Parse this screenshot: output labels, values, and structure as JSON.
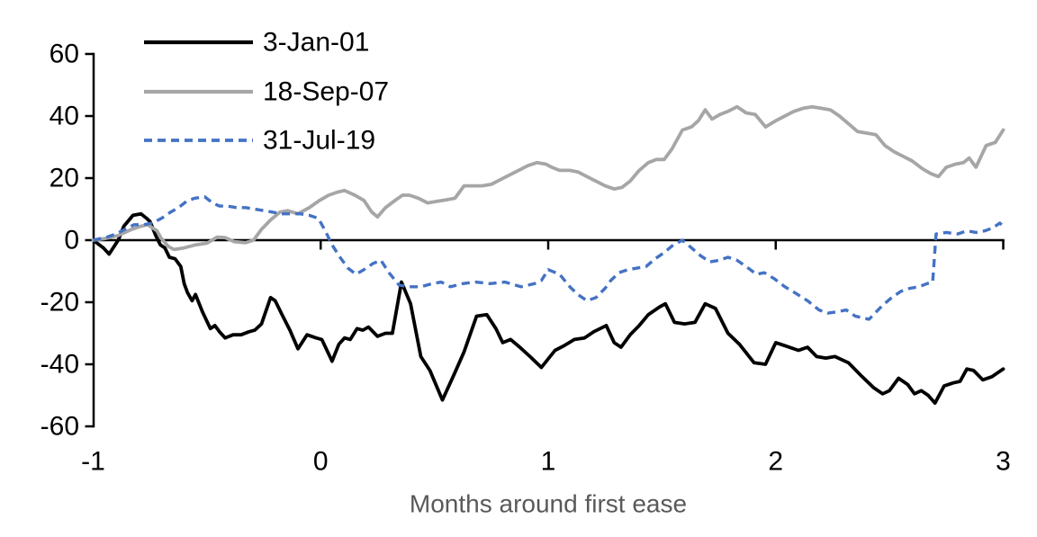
{
  "chart_data": {
    "type": "line",
    "title": "",
    "xlabel": "Months around first ease",
    "ylabel": "",
    "xlim": [
      -1,
      3
    ],
    "ylim": [
      -60,
      60
    ],
    "x_ticks": [
      "-1",
      "0",
      "1",
      "2",
      "3"
    ],
    "x_tick_values": [
      -1,
      0,
      1,
      2,
      3
    ],
    "y_ticks": [
      "60",
      "40",
      "20",
      "0",
      "-20",
      "-40",
      "-60"
    ],
    "y_tick_values": [
      60,
      40,
      20,
      0,
      -20,
      -40,
      -60
    ],
    "grid": false,
    "legend_position": "top-left-inside",
    "axis_color": "#000000",
    "tick_label_color": "#000000",
    "xlabel_color": "#595959",
    "series": [
      {
        "name": "3-Jan-01",
        "color": "#000000",
        "style": "solid",
        "width": 3.8,
        "points": [
          [
            -1,
            0
          ],
          [
            -0.955,
            -2.5
          ],
          [
            -0.93,
            -4.5
          ],
          [
            -0.89,
            0
          ],
          [
            -0.865,
            4.5
          ],
          [
            -0.825,
            8
          ],
          [
            -0.79,
            8.5
          ],
          [
            -0.765,
            7
          ],
          [
            -0.75,
            6
          ],
          [
            -0.725,
            1.5
          ],
          [
            -0.705,
            -1.5
          ],
          [
            -0.685,
            -2.5
          ],
          [
            -0.665,
            -5.5
          ],
          [
            -0.64,
            -6
          ],
          [
            -0.615,
            -8.5
          ],
          [
            -0.6,
            -14
          ],
          [
            -0.585,
            -17
          ],
          [
            -0.565,
            -19.5
          ],
          [
            -0.55,
            -17.5
          ],
          [
            -0.52,
            -23
          ],
          [
            -0.485,
            -28.5
          ],
          [
            -0.465,
            -27.5
          ],
          [
            -0.445,
            -29.5
          ],
          [
            -0.42,
            -31.5
          ],
          [
            -0.385,
            -30.5
          ],
          [
            -0.35,
            -30.5
          ],
          [
            -0.315,
            -29.5
          ],
          [
            -0.29,
            -29
          ],
          [
            -0.26,
            -27
          ],
          [
            -0.22,
            -18.5
          ],
          [
            -0.2,
            -19.5
          ],
          [
            -0.17,
            -24
          ],
          [
            -0.135,
            -29
          ],
          [
            -0.1,
            -35
          ],
          [
            -0.06,
            -30.5
          ],
          [
            -0.02,
            -31.5
          ],
          [
            0.005,
            -32
          ],
          [
            0.05,
            -39
          ],
          [
            0.08,
            -33.5
          ],
          [
            0.105,
            -31.5
          ],
          [
            0.13,
            -32
          ],
          [
            0.16,
            -28.5
          ],
          [
            0.185,
            -29
          ],
          [
            0.21,
            -28
          ],
          [
            0.25,
            -31
          ],
          [
            0.285,
            -30
          ],
          [
            0.315,
            -30
          ],
          [
            0.355,
            -13.5
          ],
          [
            0.395,
            -20.5
          ],
          [
            0.44,
            -37.5
          ],
          [
            0.48,
            -42
          ],
          [
            0.535,
            -51.5
          ],
          [
            0.585,
            -43.5
          ],
          [
            0.63,
            -36
          ],
          [
            0.685,
            -24.5
          ],
          [
            0.73,
            -24
          ],
          [
            0.77,
            -28.5
          ],
          [
            0.8,
            -33
          ],
          [
            0.835,
            -32
          ],
          [
            0.875,
            -34.5
          ],
          [
            0.92,
            -37.5
          ],
          [
            0.97,
            -41
          ],
          [
            1.03,
            -35.5
          ],
          [
            1.07,
            -34
          ],
          [
            1.115,
            -32
          ],
          [
            1.16,
            -31.5
          ],
          [
            1.2,
            -29.5
          ],
          [
            1.255,
            -27.5
          ],
          [
            1.29,
            -33
          ],
          [
            1.32,
            -34.5
          ],
          [
            1.36,
            -30.5
          ],
          [
            1.4,
            -27.5
          ],
          [
            1.44,
            -24
          ],
          [
            1.49,
            -21.5
          ],
          [
            1.515,
            -20.5
          ],
          [
            1.555,
            -26.5
          ],
          [
            1.6,
            -27
          ],
          [
            1.645,
            -26.5
          ],
          [
            1.69,
            -20.5
          ],
          [
            1.735,
            -22
          ],
          [
            1.79,
            -30
          ],
          [
            1.84,
            -33.5
          ],
          [
            1.905,
            -39.5
          ],
          [
            1.955,
            -40
          ],
          [
            2,
            -33
          ],
          [
            2.04,
            -34
          ],
          [
            2.1,
            -35.5
          ],
          [
            2.14,
            -34.5
          ],
          [
            2.18,
            -37.5
          ],
          [
            2.22,
            -38
          ],
          [
            2.26,
            -37.5
          ],
          [
            2.32,
            -39.5
          ],
          [
            2.38,
            -44
          ],
          [
            2.43,
            -47.5
          ],
          [
            2.47,
            -49.5
          ],
          [
            2.5,
            -48.5
          ],
          [
            2.54,
            -44.5
          ],
          [
            2.58,
            -46.5
          ],
          [
            2.61,
            -49.5
          ],
          [
            2.64,
            -48.5
          ],
          [
            2.67,
            -50
          ],
          [
            2.7,
            -52.5
          ],
          [
            2.74,
            -47
          ],
          [
            2.78,
            -46
          ],
          [
            2.81,
            -45.5
          ],
          [
            2.84,
            -41.5
          ],
          [
            2.87,
            -42
          ],
          [
            2.91,
            -45
          ],
          [
            2.95,
            -44
          ],
          [
            3,
            -41.5
          ]
        ]
      },
      {
        "name": "18-Sep-07",
        "color": "#a6a6a6",
        "style": "solid",
        "width": 3.8,
        "points": [
          [
            -1,
            0
          ],
          [
            -0.95,
            0.5
          ],
          [
            -0.89,
            1.5
          ],
          [
            -0.83,
            3.5
          ],
          [
            -0.79,
            4.5
          ],
          [
            -0.76,
            5
          ],
          [
            -0.72,
            3
          ],
          [
            -0.7,
            0.5
          ],
          [
            -0.67,
            -2
          ],
          [
            -0.645,
            -3
          ],
          [
            -0.6,
            -2.5
          ],
          [
            -0.55,
            -1.5
          ],
          [
            -0.5,
            -1
          ],
          [
            -0.455,
            1
          ],
          [
            -0.42,
            0.8
          ],
          [
            -0.38,
            -0.5
          ],
          [
            -0.33,
            -0.8
          ],
          [
            -0.295,
            0
          ],
          [
            -0.26,
            3.5
          ],
          [
            -0.22,
            6.5
          ],
          [
            -0.18,
            9
          ],
          [
            -0.145,
            9.5
          ],
          [
            -0.1,
            8.5
          ],
          [
            -0.05,
            10.5
          ],
          [
            -0.005,
            12.8
          ],
          [
            0.035,
            14.5
          ],
          [
            0.075,
            15.5
          ],
          [
            0.105,
            16
          ],
          [
            0.15,
            14.5
          ],
          [
            0.19,
            12.8
          ],
          [
            0.225,
            9
          ],
          [
            0.25,
            7.5
          ],
          [
            0.285,
            10.5
          ],
          [
            0.33,
            13
          ],
          [
            0.36,
            14.5
          ],
          [
            0.39,
            14.5
          ],
          [
            0.43,
            13.5
          ],
          [
            0.47,
            12
          ],
          [
            0.51,
            12.5
          ],
          [
            0.55,
            13
          ],
          [
            0.59,
            13.5
          ],
          [
            0.63,
            17.5
          ],
          [
            0.67,
            17.5
          ],
          [
            0.71,
            17.5
          ],
          [
            0.75,
            18
          ],
          [
            0.79,
            19.5
          ],
          [
            0.83,
            21
          ],
          [
            0.87,
            22.5
          ],
          [
            0.91,
            24
          ],
          [
            0.95,
            25
          ],
          [
            0.99,
            24.5
          ],
          [
            1.015,
            23.5
          ],
          [
            1.05,
            22.5
          ],
          [
            1.095,
            22.5
          ],
          [
            1.13,
            22
          ],
          [
            1.17,
            20.5
          ],
          [
            1.21,
            19
          ],
          [
            1.25,
            17.5
          ],
          [
            1.29,
            16.5
          ],
          [
            1.325,
            17
          ],
          [
            1.36,
            19
          ],
          [
            1.4,
            22.5
          ],
          [
            1.44,
            25
          ],
          [
            1.475,
            26
          ],
          [
            1.51,
            26
          ],
          [
            1.545,
            29.5
          ],
          [
            1.59,
            35.5
          ],
          [
            1.63,
            36.5
          ],
          [
            1.66,
            38.5
          ],
          [
            1.69,
            42
          ],
          [
            1.72,
            39
          ],
          [
            1.755,
            40.5
          ],
          [
            1.79,
            41.5
          ],
          [
            1.83,
            43
          ],
          [
            1.87,
            41
          ],
          [
            1.91,
            40.5
          ],
          [
            1.955,
            36.5
          ],
          [
            2,
            38.5
          ],
          [
            2.04,
            40
          ],
          [
            2.08,
            41.5
          ],
          [
            2.12,
            42.5
          ],
          [
            2.16,
            43
          ],
          [
            2.2,
            42.5
          ],
          [
            2.24,
            42
          ],
          [
            2.28,
            40
          ],
          [
            2.32,
            37.5
          ],
          [
            2.36,
            35
          ],
          [
            2.4,
            34.5
          ],
          [
            2.44,
            34
          ],
          [
            2.48,
            30.5
          ],
          [
            2.52,
            28.5
          ],
          [
            2.56,
            27
          ],
          [
            2.6,
            25.5
          ],
          [
            2.645,
            23
          ],
          [
            2.68,
            21.5
          ],
          [
            2.715,
            20.5
          ],
          [
            2.75,
            23.5
          ],
          [
            2.79,
            24.5
          ],
          [
            2.825,
            25
          ],
          [
            2.85,
            26.5
          ],
          [
            2.88,
            23.5
          ],
          [
            2.925,
            30.5
          ],
          [
            2.965,
            31.5
          ],
          [
            3,
            35.5
          ]
        ]
      },
      {
        "name": "31-Jul-19",
        "color": "#4472c4",
        "style": "dashed",
        "width": 3.4,
        "points": [
          [
            -1,
            0
          ],
          [
            -0.94,
            1
          ],
          [
            -0.9,
            2
          ],
          [
            -0.86,
            3.5
          ],
          [
            -0.82,
            5
          ],
          [
            -0.78,
            5
          ],
          [
            -0.74,
            5.5
          ],
          [
            -0.7,
            7
          ],
          [
            -0.66,
            9
          ],
          [
            -0.625,
            10.5
          ],
          [
            -0.59,
            12.5
          ],
          [
            -0.555,
            13.5
          ],
          [
            -0.51,
            14
          ],
          [
            -0.475,
            12
          ],
          [
            -0.445,
            11
          ],
          [
            -0.41,
            11
          ],
          [
            -0.37,
            10.5
          ],
          [
            -0.33,
            10.5
          ],
          [
            -0.29,
            10
          ],
          [
            -0.25,
            9.5
          ],
          [
            -0.21,
            9
          ],
          [
            -0.17,
            8.5
          ],
          [
            -0.13,
            8.5
          ],
          [
            -0.09,
            8.5
          ],
          [
            -0.05,
            8
          ],
          [
            -0.01,
            7
          ],
          [
            0.02,
            3
          ],
          [
            0.05,
            -1.5
          ],
          [
            0.085,
            -5.5
          ],
          [
            0.12,
            -9
          ],
          [
            0.155,
            -11
          ],
          [
            0.19,
            -9.5
          ],
          [
            0.23,
            -7.5
          ],
          [
            0.265,
            -6.5
          ],
          [
            0.3,
            -10.5
          ],
          [
            0.345,
            -14.5
          ],
          [
            0.39,
            -15
          ],
          [
            0.44,
            -15
          ],
          [
            0.49,
            -14
          ],
          [
            0.53,
            -13.5
          ],
          [
            0.57,
            -15
          ],
          [
            0.625,
            -14
          ],
          [
            0.68,
            -13.5
          ],
          [
            0.745,
            -14
          ],
          [
            0.81,
            -13.5
          ],
          [
            0.88,
            -15
          ],
          [
            0.94,
            -14
          ],
          [
            0.97,
            -13
          ],
          [
            1,
            -9.5
          ],
          [
            1.05,
            -11
          ],
          [
            1.095,
            -15
          ],
          [
            1.13,
            -17.5
          ],
          [
            1.17,
            -19.5
          ],
          [
            1.21,
            -18.5
          ],
          [
            1.25,
            -15.5
          ],
          [
            1.275,
            -13
          ],
          [
            1.31,
            -10.5
          ],
          [
            1.35,
            -9.5
          ],
          [
            1.39,
            -9
          ],
          [
            1.43,
            -8.5
          ],
          [
            1.47,
            -6
          ],
          [
            1.51,
            -4
          ],
          [
            1.55,
            -1.5
          ],
          [
            1.59,
            0
          ],
          [
            1.63,
            -2.5
          ],
          [
            1.67,
            -5
          ],
          [
            1.71,
            -7
          ],
          [
            1.75,
            -6.5
          ],
          [
            1.79,
            -5.5
          ],
          [
            1.83,
            -6.5
          ],
          [
            1.87,
            -8.5
          ],
          [
            1.915,
            -11
          ],
          [
            1.95,
            -10.5
          ],
          [
            1.995,
            -12.5
          ],
          [
            2.04,
            -15
          ],
          [
            2.085,
            -17
          ],
          [
            2.14,
            -19.5
          ],
          [
            2.19,
            -22.5
          ],
          [
            2.23,
            -23.5
          ],
          [
            2.275,
            -23
          ],
          [
            2.31,
            -22.5
          ],
          [
            2.35,
            -24.5
          ],
          [
            2.41,
            -25.5
          ],
          [
            2.47,
            -21
          ],
          [
            2.51,
            -18.5
          ],
          [
            2.55,
            -16.5
          ],
          [
            2.59,
            -15.5
          ],
          [
            2.63,
            -15
          ],
          [
            2.665,
            -14
          ],
          [
            2.69,
            -13.5
          ],
          [
            2.705,
            2
          ],
          [
            2.75,
            2.5
          ],
          [
            2.8,
            2
          ],
          [
            2.84,
            3
          ],
          [
            2.88,
            2.5
          ],
          [
            2.92,
            3
          ],
          [
            2.955,
            4
          ],
          [
            2.985,
            5.5
          ],
          [
            3,
            4.5
          ]
        ]
      }
    ]
  }
}
